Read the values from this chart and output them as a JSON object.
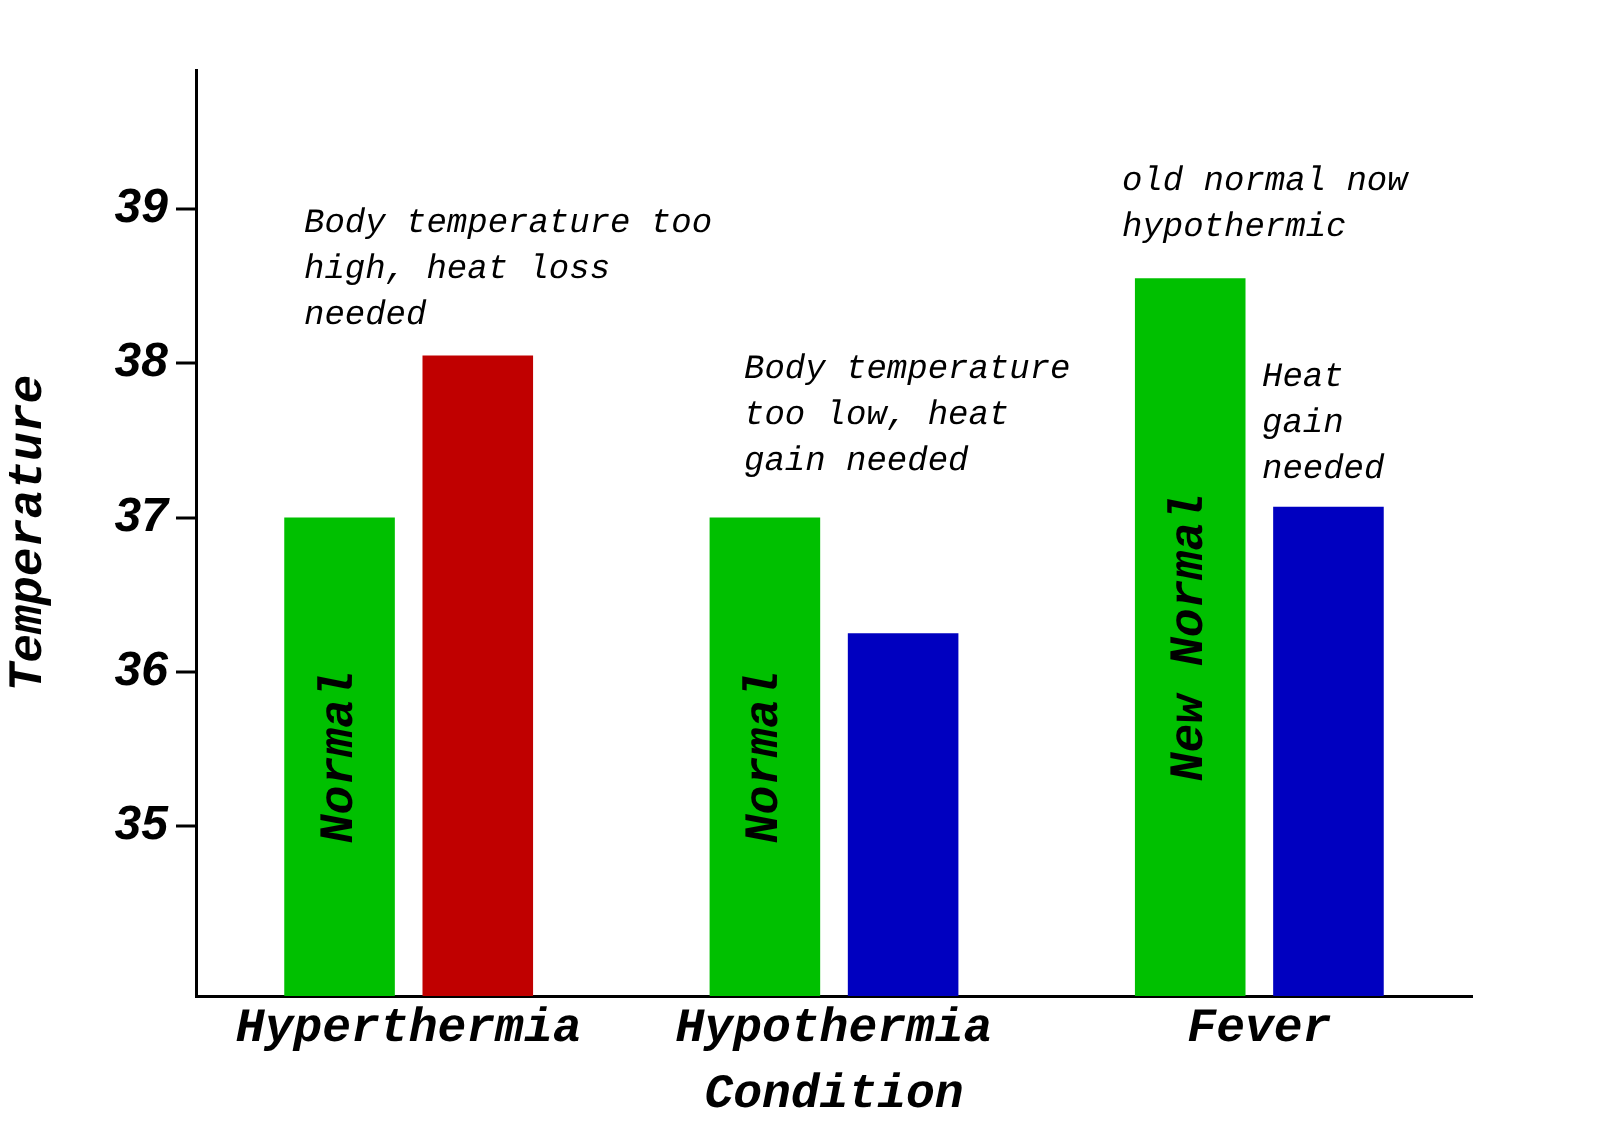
{
  "chart_data": {
    "type": "bar",
    "xlabel": "Condition",
    "ylabel": "Temperature",
    "categories": [
      "Hyperthermia",
      "Hypothermia",
      "Fever"
    ],
    "series": [
      {
        "color": "#00c000",
        "values": [
          37.0,
          37.0,
          38.55
        ],
        "value_labels": [
          "Normal",
          "Normal",
          "New Normal"
        ]
      },
      {
        "colors": [
          "#c00000",
          "#0000c0",
          "#0000c0"
        ],
        "values": [
          38.05,
          36.25,
          37.07
        ]
      }
    ],
    "ylim": [
      33.9,
      39.9
    ],
    "yticks": [
      35,
      36,
      37,
      38,
      39
    ],
    "grid": false,
    "legend": false,
    "annotations": [
      "Body temperature too\nhigh, heat loss\nneeded",
      "Body temperature\ntoo low, heat\ngain needed",
      "old normal now\nhypothermic",
      "Heat\ngain\nneeded"
    ]
  }
}
